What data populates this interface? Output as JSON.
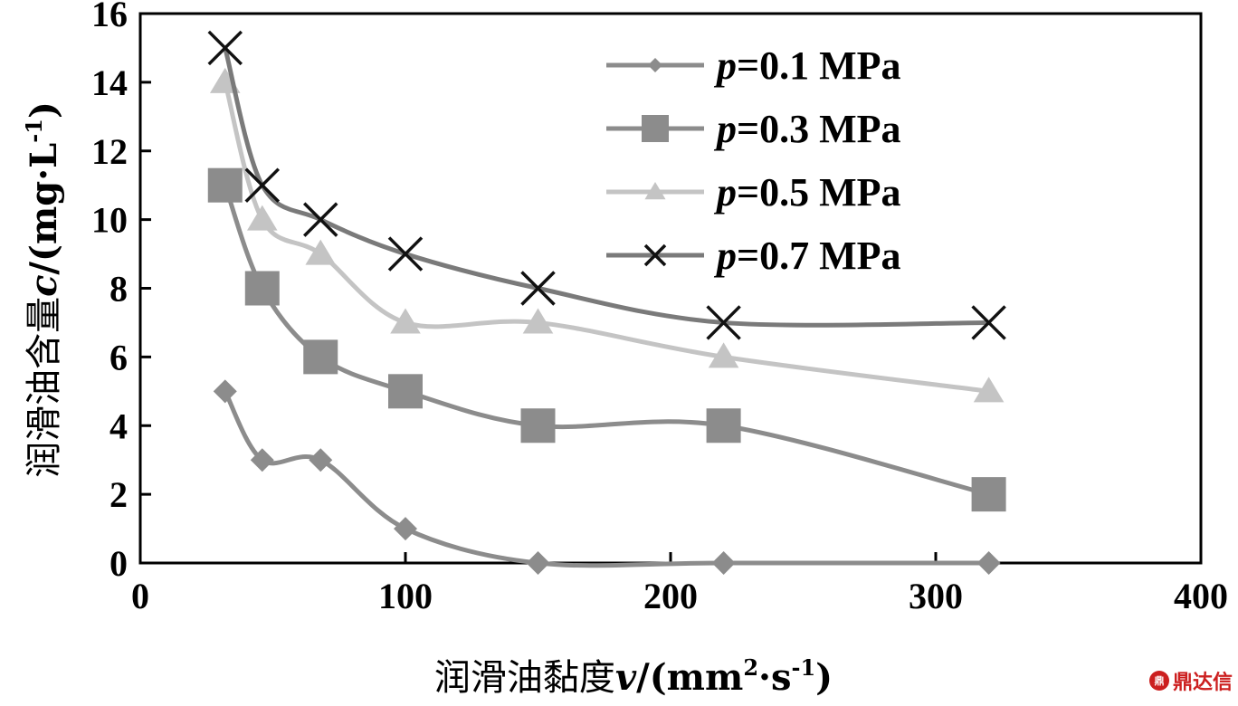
{
  "chart_data": {
    "type": "line",
    "title": "",
    "xlabel": {
      "prefix": "润滑油黏度",
      "var": "v",
      "unit_open": "/(mm",
      "unit_sup1": "2",
      "unit_mid": "·s",
      "unit_sup2": "-1",
      "unit_close": ")"
    },
    "ylabel": {
      "prefix": "润滑油含量",
      "var": "c",
      "unit_open": "/(mg·L",
      "unit_sup": "-1",
      "unit_close": ")"
    },
    "xlim": [
      0,
      400
    ],
    "ylim": [
      0,
      16
    ],
    "xticks": [
      0,
      100,
      200,
      300,
      400
    ],
    "yticks": [
      0,
      2,
      4,
      6,
      8,
      10,
      12,
      14,
      16
    ],
    "grid": false,
    "legend_position": "top-right",
    "x": [
      32,
      46,
      68,
      100,
      150,
      220,
      320
    ],
    "series": [
      {
        "name_var": "p",
        "name_rest": "=0.1 MPa",
        "marker": "diamond",
        "color": "#8c8c8c",
        "values": [
          5,
          3,
          3,
          1,
          0,
          0,
          0
        ]
      },
      {
        "name_var": "p",
        "name_rest": "=0.3 MPa",
        "marker": "square",
        "color": "#8c8c8c",
        "values": [
          11,
          8,
          6,
          5,
          4,
          4,
          2
        ]
      },
      {
        "name_var": "p",
        "name_rest": "=0.5 MPa",
        "marker": "triangle",
        "color": "#c4c4c4",
        "values": [
          14,
          10,
          9,
          7,
          7,
          6,
          5
        ]
      },
      {
        "name_var": "p",
        "name_rest": "=0.7 MPa",
        "marker": "x",
        "color": "#7a7a7a",
        "values": [
          15,
          11,
          10,
          9,
          8,
          7,
          7
        ]
      }
    ]
  },
  "watermark": {
    "logo": "鼎",
    "text": "鼎达信"
  }
}
